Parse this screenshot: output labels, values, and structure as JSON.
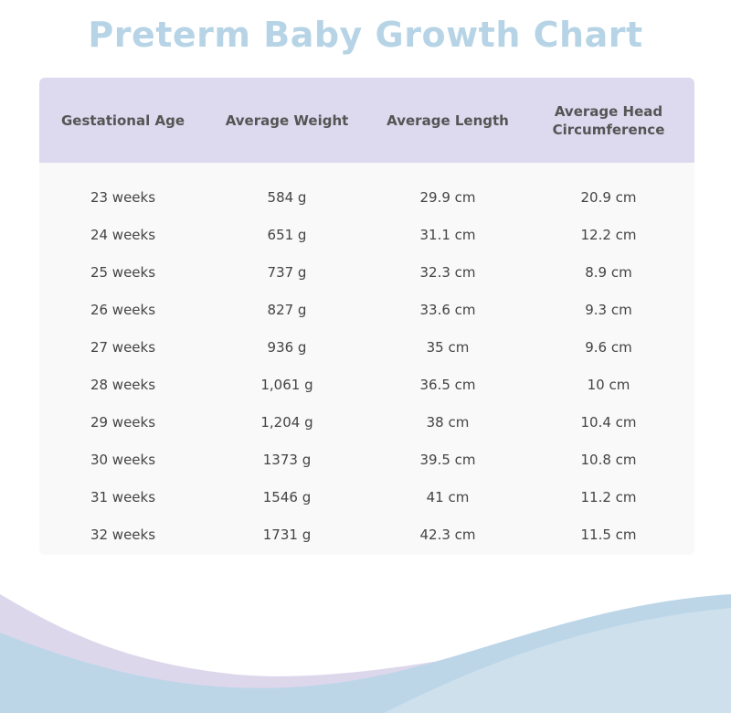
{
  "title": "Preterm Baby Growth Chart",
  "colors": {
    "title": "#b7d4e6",
    "header_bg": "#ddd9ee",
    "body_bg": "#f9f9f9",
    "wave_lavender": "#ddd7ec",
    "wave_blue": "#bcd6e8",
    "wave_light_blue": "#cfe1ec"
  },
  "table": {
    "headers": {
      "age": "Gestational Age",
      "weight": "Average Weight",
      "length": "Average Length",
      "head_line1": "Average Head",
      "head_line2": "Circumference"
    },
    "rows": [
      {
        "age": "23 weeks",
        "weight": "584 g",
        "length": "29.9 cm",
        "head": "20.9 cm"
      },
      {
        "age": "24 weeks",
        "weight": "651 g",
        "length": "31.1 cm",
        "head": "12.2 cm"
      },
      {
        "age": "25 weeks",
        "weight": "737 g",
        "length": "32.3 cm",
        "head": "8.9 cm"
      },
      {
        "age": "26 weeks",
        "weight": "827 g",
        "length": "33.6 cm",
        "head": "9.3 cm"
      },
      {
        "age": "27 weeks",
        "weight": "936 g",
        "length": "35 cm",
        "head": "9.6 cm"
      },
      {
        "age": "28 weeks",
        "weight": "1,061 g",
        "length": "36.5 cm",
        "head": "10 cm"
      },
      {
        "age": "29 weeks",
        "weight": "1,204 g",
        "length": "38 cm",
        "head": "10.4 cm"
      },
      {
        "age": "30 weeks",
        "weight": "1373 g",
        "length": "39.5 cm",
        "head": "10.8 cm"
      },
      {
        "age": "31 weeks",
        "weight": "1546 g",
        "length": "41 cm",
        "head": "11.2 cm"
      },
      {
        "age": "32 weeks",
        "weight": "1731 g",
        "length": "42.3 cm",
        "head": "11.5 cm"
      }
    ]
  }
}
